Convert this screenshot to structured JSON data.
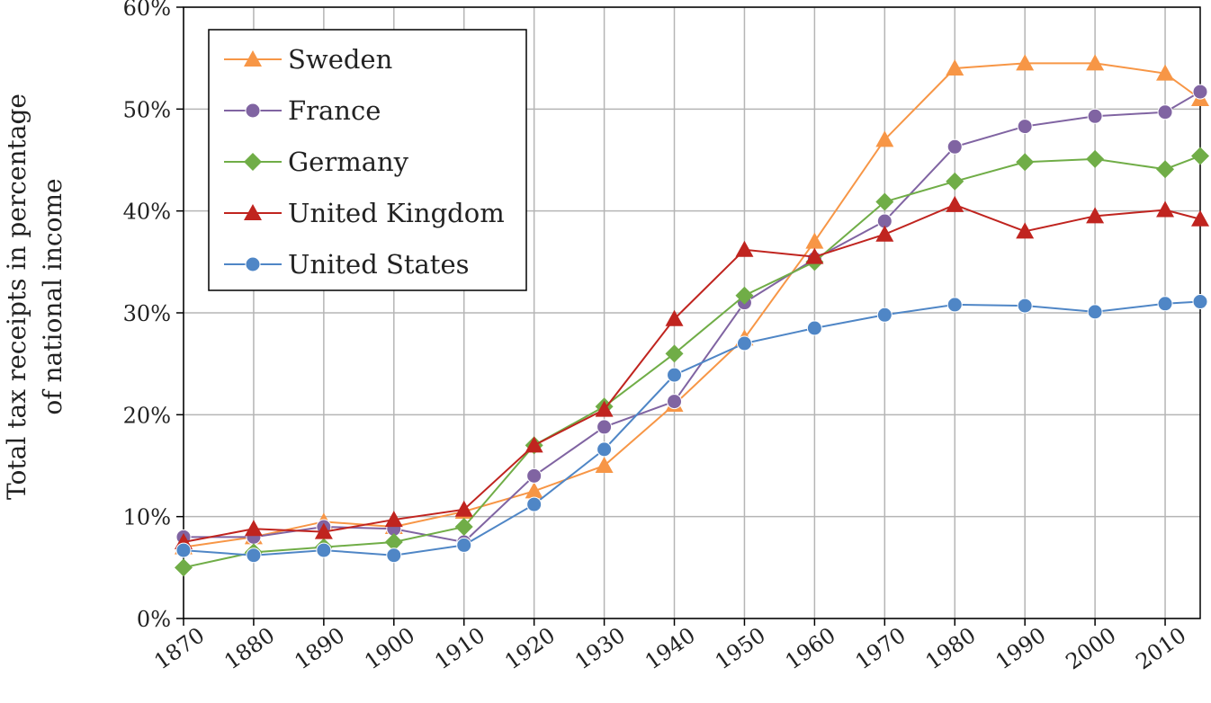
{
  "chart_data": {
    "type": "line",
    "title": "",
    "xlabel": "",
    "ylabel_lines": [
      "Total tax receipts in percentage",
      "of national income"
    ],
    "x": [
      1870,
      1880,
      1890,
      1900,
      1910,
      1920,
      1930,
      1940,
      1950,
      1960,
      1970,
      1980,
      1990,
      2000,
      2010,
      2015
    ],
    "x_ticks": [
      1870,
      1880,
      1890,
      1900,
      1910,
      1920,
      1930,
      1940,
      1950,
      1960,
      1970,
      1980,
      1990,
      2000,
      2010
    ],
    "xlim": [
      1870,
      2015
    ],
    "ylim": [
      0,
      60
    ],
    "y_ticks": [
      0,
      10,
      20,
      30,
      40,
      50,
      60
    ],
    "y_tick_suffix": "%",
    "grid": true,
    "legend_position": "top-left",
    "series": [
      {
        "name": "Sweden",
        "color": "#F79646",
        "marker": "triangle",
        "values": [
          7,
          8,
          9.5,
          9,
          10.5,
          12.5,
          15,
          21,
          27.5,
          37,
          47,
          54,
          54.5,
          54.5,
          53.5,
          51
        ]
      },
      {
        "name": "France",
        "color": "#8064A2",
        "marker": "circle",
        "values": [
          8,
          8,
          9,
          8.8,
          7.5,
          14,
          18.8,
          21.3,
          31,
          35.3,
          39,
          46.3,
          48.3,
          49.3,
          49.7,
          51.7
        ]
      },
      {
        "name": "Germany",
        "color": "#70AD47",
        "marker": "diamond",
        "values": [
          5,
          6.5,
          7,
          7.5,
          9,
          17,
          20.8,
          26,
          31.7,
          35,
          40.9,
          42.9,
          44.8,
          45.1,
          44.1,
          45.4
        ]
      },
      {
        "name": "United Kingdom",
        "color": "#C0241F",
        "marker": "triangle",
        "values": [
          7.5,
          8.8,
          8.5,
          9.7,
          10.7,
          17,
          20.5,
          29.4,
          36.2,
          35.5,
          37.7,
          40.6,
          38,
          39.5,
          40.1,
          39.2
        ]
      },
      {
        "name": "United States",
        "color": "#4F86C6",
        "marker": "circle",
        "values": [
          6.7,
          6.2,
          6.7,
          6.2,
          7.2,
          11.2,
          16.6,
          23.9,
          27,
          28.5,
          29.8,
          30.8,
          30.7,
          30.1,
          30.9,
          31.1
        ]
      }
    ]
  }
}
